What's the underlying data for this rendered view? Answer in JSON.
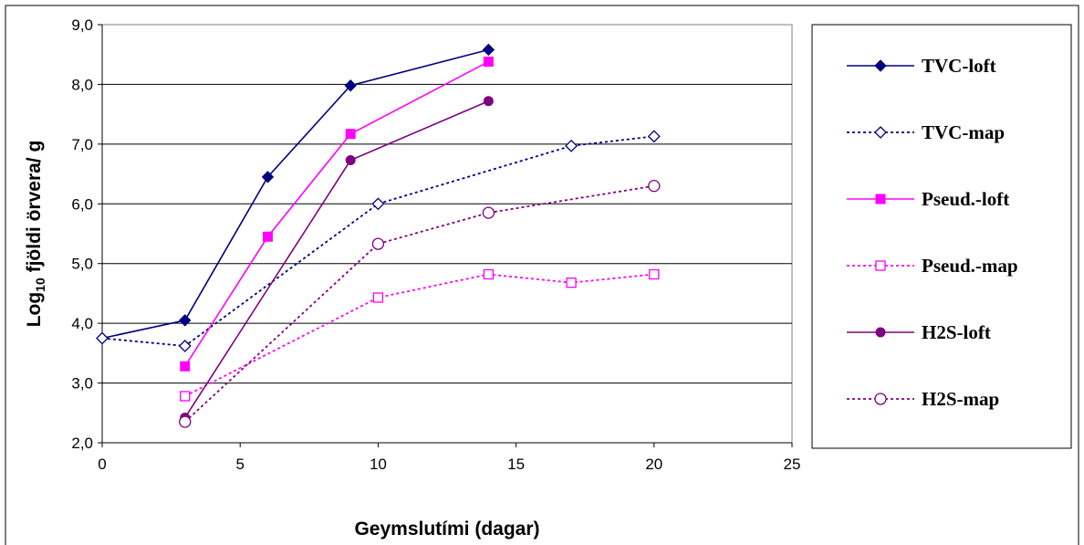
{
  "chart_data": {
    "type": "line",
    "title": "",
    "xlabel": "Geymslutími (dagar)",
    "ylabel_main": "Log",
    "ylabel_sub": "10",
    "ylabel_rest": " fjöldi örvera/ g",
    "xlim": [
      0,
      25
    ],
    "ylim": [
      2.0,
      9.0
    ],
    "x_ticks": [
      "0",
      "5",
      "10",
      "15",
      "20",
      "25"
    ],
    "y_ticks": [
      "2,0",
      "3,0",
      "4,0",
      "5,0",
      "6,0",
      "7,0",
      "8,0",
      "9,0"
    ],
    "grid": "horizontal",
    "legend_position": "right",
    "series": [
      {
        "name": "TVC-loft",
        "color": "#000080",
        "dash": "solid",
        "marker": "diamond-filled",
        "x": [
          0,
          3,
          6,
          9,
          14
        ],
        "y": [
          3.75,
          4.05,
          6.45,
          7.98,
          8.58
        ]
      },
      {
        "name": "TVC-map",
        "color": "#000080",
        "dash": "dotted",
        "marker": "diamond-open",
        "x": [
          0,
          3,
          10,
          17,
          20
        ],
        "y": [
          3.75,
          3.62,
          6.0,
          6.97,
          7.13
        ]
      },
      {
        "name": "Pseud.-loft",
        "color": "#FF00FF",
        "dash": "solid",
        "marker": "square-filled",
        "x": [
          3,
          6,
          9,
          14
        ],
        "y": [
          3.28,
          5.45,
          7.17,
          8.38
        ]
      },
      {
        "name": "Pseud.-map",
        "color": "#FF00FF",
        "dash": "dotted",
        "marker": "square-open",
        "x": [
          3,
          10,
          14,
          17,
          20
        ],
        "y": [
          2.78,
          4.43,
          4.82,
          4.68,
          4.82
        ]
      },
      {
        "name": "H2S-loft",
        "color": "#800080",
        "dash": "solid",
        "marker": "circle-filled",
        "x": [
          3,
          9,
          14
        ],
        "y": [
          2.42,
          6.73,
          7.72
        ]
      },
      {
        "name": "H2S-map",
        "color": "#800080",
        "dash": "dotted",
        "marker": "circle-open",
        "x": [
          3,
          10,
          14,
          20
        ],
        "y": [
          2.35,
          5.33,
          5.85,
          6.3
        ]
      }
    ]
  }
}
